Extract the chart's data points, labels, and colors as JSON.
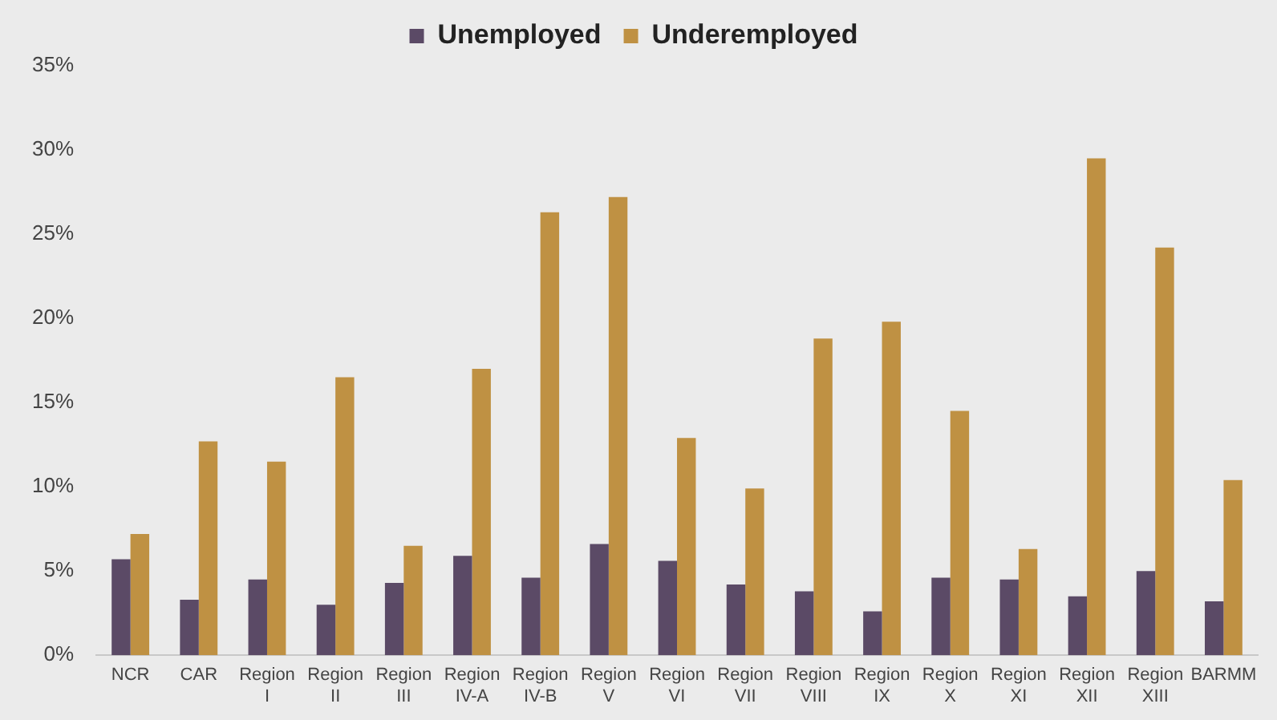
{
  "chart_data": {
    "type": "bar",
    "categories": [
      "NCR",
      "CAR",
      "Region I",
      "Region II",
      "Region III",
      "Region IV-A",
      "Region IV-B",
      "Region V",
      "Region VI",
      "Region VII",
      "Region VIII",
      "Region IX",
      "Region X",
      "Region XI",
      "Region XII",
      "Region XIII",
      "BARMM"
    ],
    "series": [
      {
        "name": "Unemployed",
        "color": "#5b4a66",
        "values": [
          5.7,
          3.3,
          4.5,
          3.0,
          4.3,
          5.9,
          4.6,
          6.6,
          5.6,
          4.2,
          3.8,
          2.6,
          4.6,
          4.5,
          3.5,
          5.0,
          3.2
        ]
      },
      {
        "name": "Underemployed",
        "color": "#bf9143",
        "values": [
          7.2,
          12.7,
          11.5,
          16.5,
          6.5,
          17.0,
          26.3,
          27.2,
          12.9,
          9.9,
          18.8,
          19.8,
          14.5,
          6.3,
          29.5,
          24.2,
          10.4
        ]
      }
    ],
    "ylim": [
      0,
      35
    ],
    "yticks": [
      {
        "value": 0,
        "label": "0%"
      },
      {
        "value": 5,
        "label": "5%"
      },
      {
        "value": 10,
        "label": "10%"
      },
      {
        "value": 15,
        "label": "15%"
      },
      {
        "value": 20,
        "label": "20%"
      },
      {
        "value": 25,
        "label": "25%"
      },
      {
        "value": 30,
        "label": "30%"
      },
      {
        "value": 35,
        "label": "35%"
      }
    ],
    "grid": false,
    "legend": "top"
  }
}
